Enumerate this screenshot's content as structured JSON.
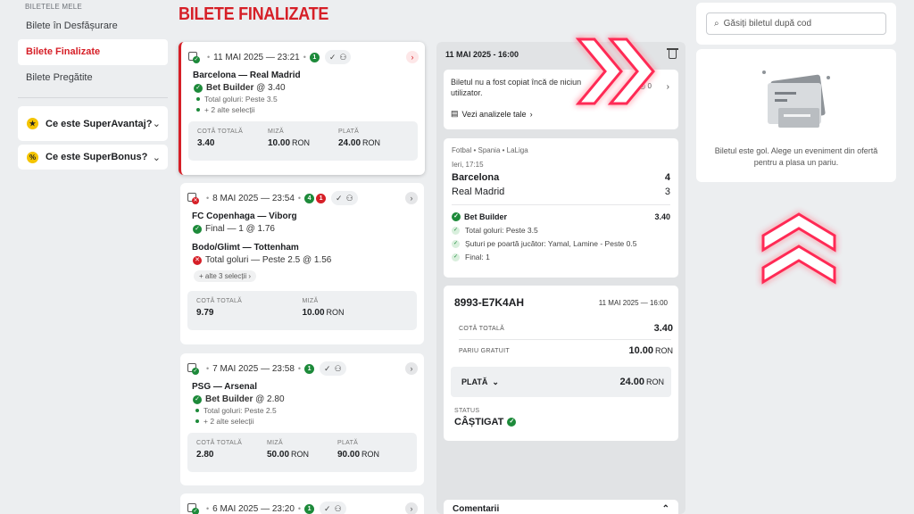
{
  "sidebar": {
    "heading": "BILETELE MELE",
    "items": [
      {
        "label": "Bilete în Desfășurare",
        "active": false
      },
      {
        "label": "Bilete Finalizate",
        "active": true
      },
      {
        "label": "Bilete Pregătite",
        "active": false
      }
    ],
    "info": [
      {
        "icon": "superavantaj-icon",
        "label": "Ce este SuperAvantaj?"
      },
      {
        "icon": "superbonus-icon",
        "label": "Ce este SuperBonus?"
      }
    ]
  },
  "page_title": "BILETE FINALIZATE",
  "tickets": [
    {
      "date": "11 MAI 2025 — 23:21",
      "win_count": "1",
      "loss_count": "",
      "match": "Barcelona — Real Madrid",
      "bet_label": "Bet Builder",
      "bet_odds": "@ 3.40",
      "sub1": "Total goluri: Peste 3.5",
      "sub2": "+ 2 alte selecții",
      "col1_label": "COTĂ TOTALĂ",
      "col1_val": "3.40",
      "col2_label": "MIZĂ",
      "col2_val": "10.00",
      "col2_cur": "RON",
      "col3_label": "PLATĂ",
      "col3_val": "24.00",
      "col3_cur": "RON"
    },
    {
      "date": "8 MAI 2025 — 23:54",
      "win_count": "4",
      "loss_count": "1",
      "match": "FC Copenhaga — Viborg",
      "bet_label": "Final — 1 @ 1.76",
      "match2": "Bodo/Glimt — Tottenham",
      "bet2_label": "Total goluri — Peste 2.5 @ 1.56",
      "more": "+ alte 3 selecții",
      "col1_label": "COTĂ TOTALĂ",
      "col1_val": "9.79",
      "col2_label": "MIZĂ",
      "col2_val": "10.00",
      "col2_cur": "RON"
    },
    {
      "date": "7 MAI 2025 — 23:58",
      "win_count": "1",
      "loss_count": "",
      "match": "PSG — Arsenal",
      "bet_label": "Bet Builder",
      "bet_odds": "@ 2.80",
      "sub1": "Total goluri: Peste 2.5",
      "sub2": "+ 2 alte selecții",
      "col1_label": "COTĂ TOTALĂ",
      "col1_val": "2.80",
      "col2_label": "MIZĂ",
      "col2_val": "50.00",
      "col2_cur": "RON",
      "col3_label": "PLATĂ",
      "col3_val": "90.00",
      "col3_cur": "RON"
    },
    {
      "date": "6 MAI 2025 — 23:20",
      "win_count": "1"
    }
  ],
  "detail": {
    "header_date": "11 MAI 2025 - 16:00",
    "note": "Biletul nu a fost copiat încă de niciun utilizator.",
    "note_meta": "0  ◎ 0",
    "analysis_link": "Vezi analizele tale",
    "crumbs": "Fotbal • Spania • LaLiga",
    "when": "Ieri, 17:15",
    "home": "Barcelona",
    "home_score": "4",
    "away": "Real Madrid",
    "away_score": "3",
    "bb_label": "Bet Builder",
    "bb_odds": "3.40",
    "selections": [
      "Total goluri: Peste 3.5",
      "Șuturi pe poartă jucător: Yamal, Lamine - Peste 0.5",
      "Final: 1"
    ],
    "code": "8993-E7K4AH",
    "code_date": "11 MAI 2025 — 16:00",
    "cota_label": "COTĂ TOTALĂ",
    "cota_val": "3.40",
    "free_label": "PARIU GRATUIT",
    "free_val": "10.00",
    "free_cur": "RON",
    "pay_label": "PLATĂ",
    "pay_val": "24.00",
    "pay_cur": "RON",
    "status_label": "STATUS",
    "status_val": "CÂȘTIGAT",
    "comments": "Comentarii"
  },
  "right": {
    "search_placeholder": "Găsiți biletul după cod",
    "empty_text": "Biletul este gol. Alege un eveniment din ofertă pentru a plasa un pariu."
  },
  "colors": {
    "accent": "#d61f27",
    "win": "#1d8a3a",
    "neon": "#ff2a55"
  }
}
